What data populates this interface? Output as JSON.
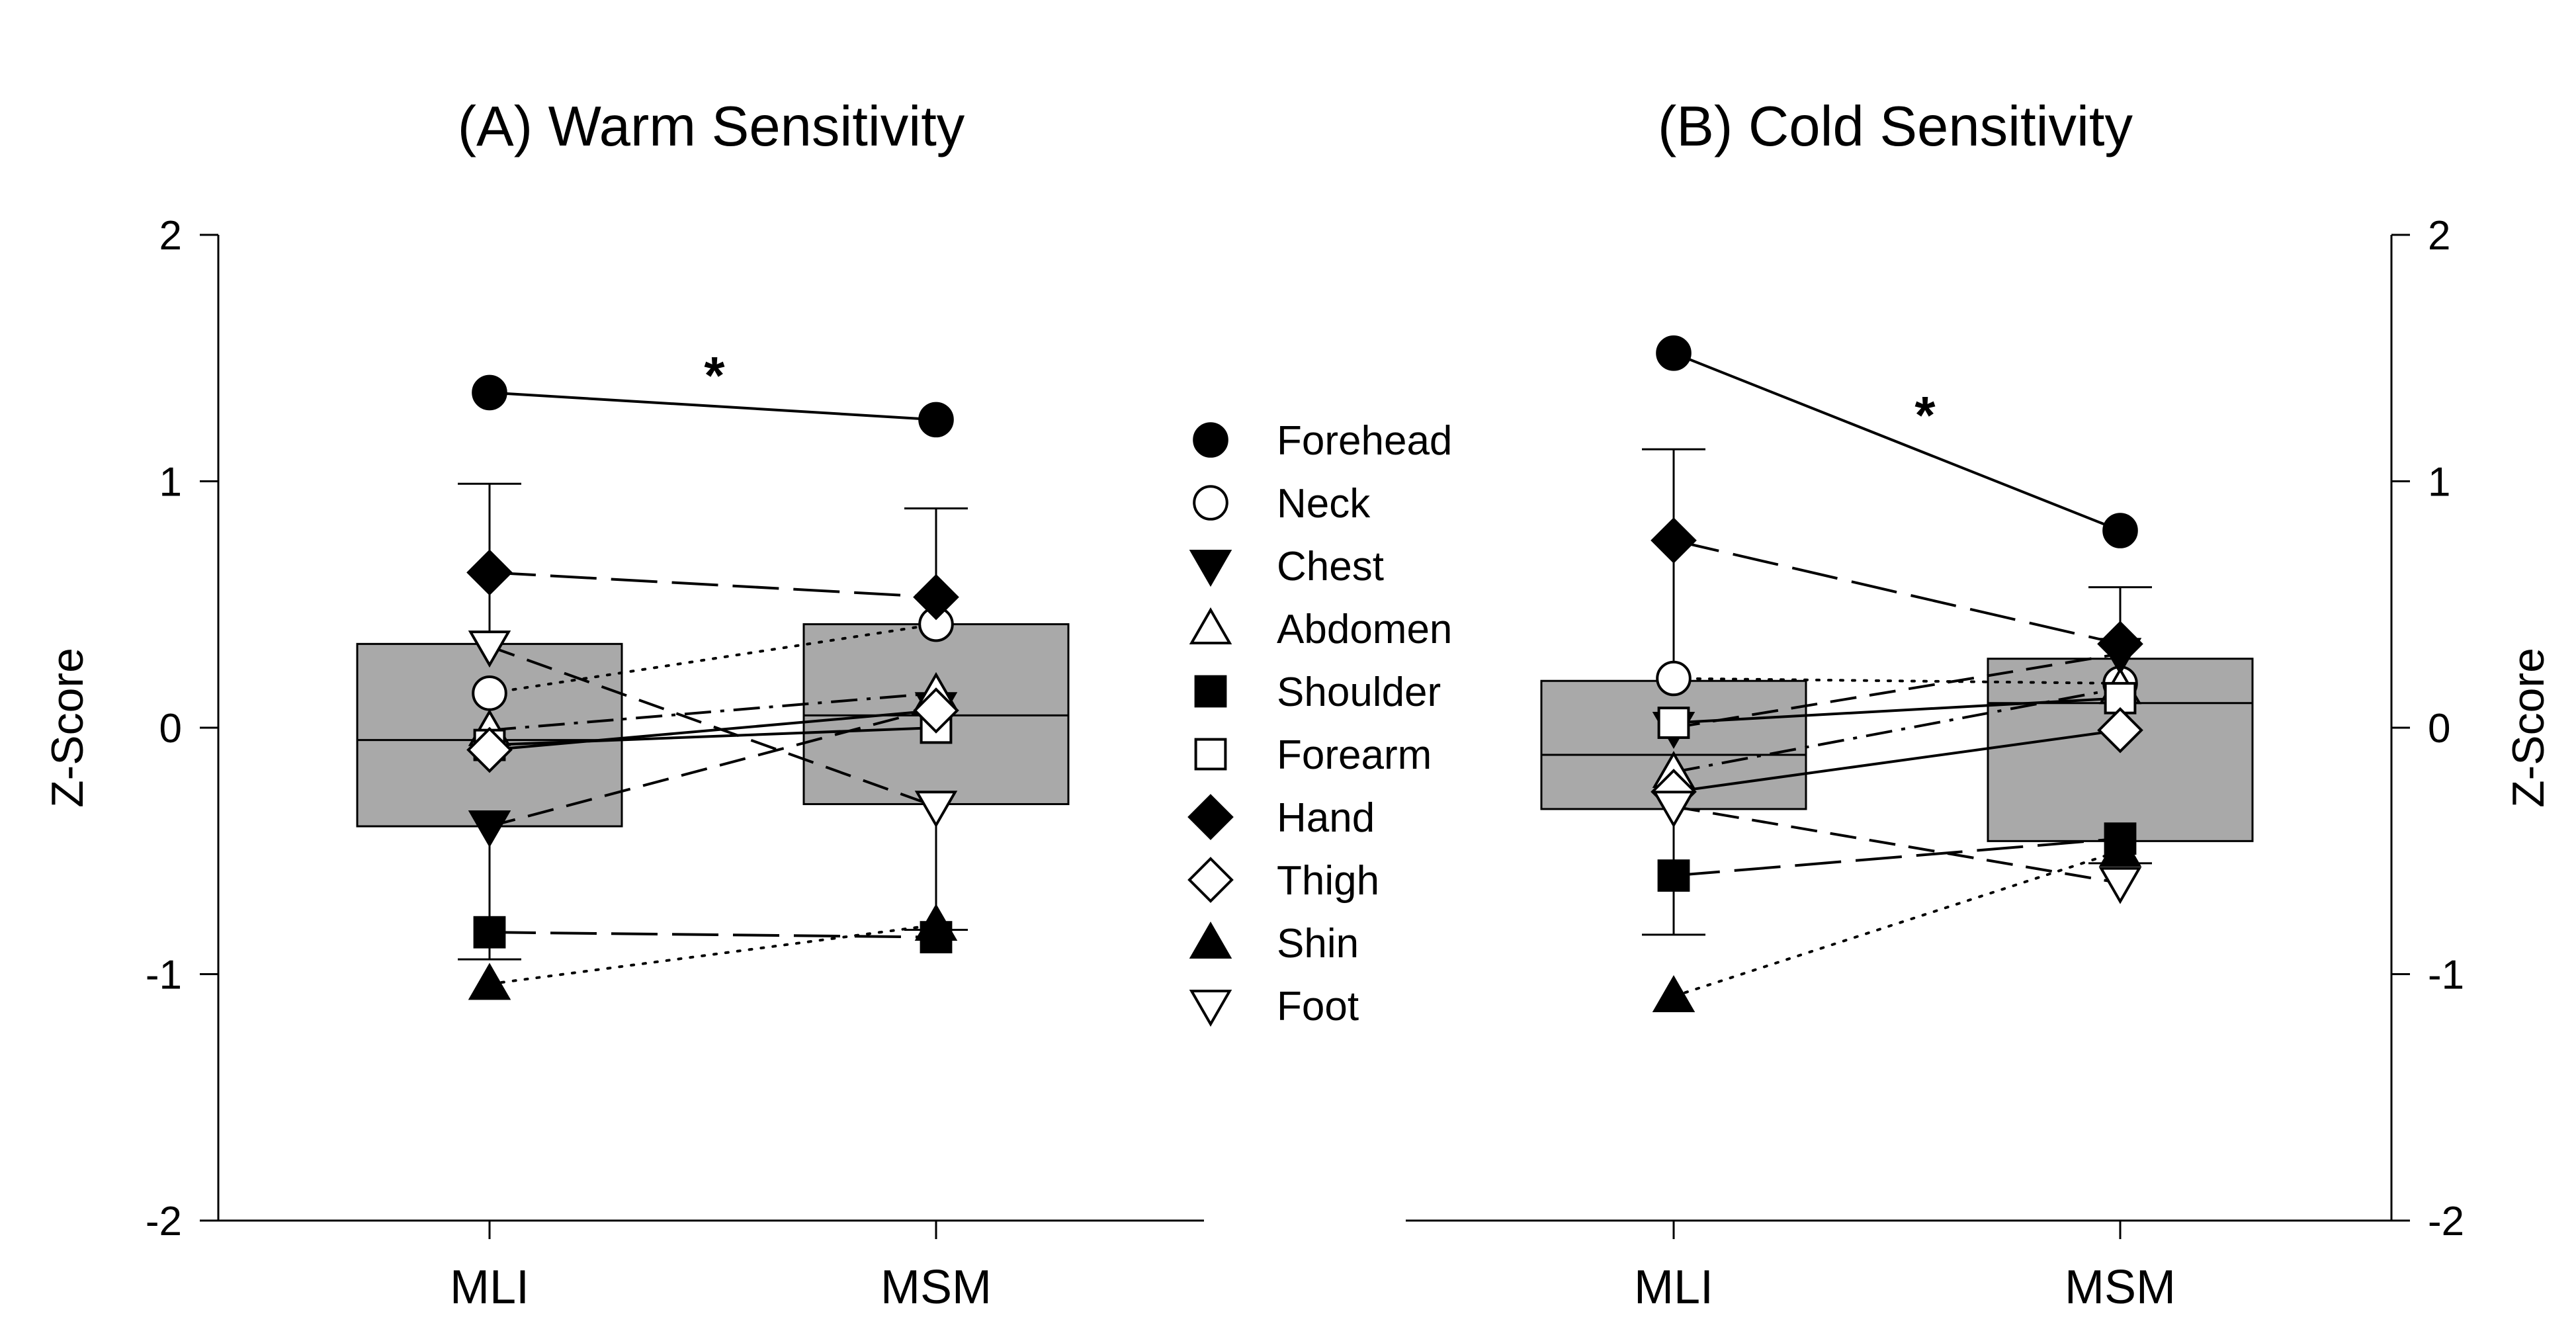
{
  "chart_data": [
    {
      "type": "box",
      "title": "(A) Warm Sensitivity",
      "xlabel": "",
      "ylabel": "Z-Score",
      "ylim": [
        -2,
        2
      ],
      "yticks": [
        -2,
        -1,
        0,
        1,
        2
      ],
      "categories": [
        "MLI",
        "MSM"
      ],
      "annotation": "*",
      "boxes": [
        {
          "category": "MLI",
          "q1": -0.4,
          "median": -0.05,
          "q3": 0.34,
          "whisker_low": -0.94,
          "whisker_high": 0.99
        },
        {
          "category": "MSM",
          "q1": -0.31,
          "median": 0.05,
          "q3": 0.42,
          "whisker_low": -0.82,
          "whisker_high": 0.89
        }
      ],
      "series": [
        {
          "name": "Forehead",
          "marker": "circle-filled",
          "line": "solid",
          "values": [
            1.36,
            1.25
          ]
        },
        {
          "name": "Neck",
          "marker": "circle-open",
          "line": "dotted",
          "values": [
            0.14,
            0.42
          ]
        },
        {
          "name": "Chest",
          "marker": "triangle-down-filled",
          "line": "dash",
          "values": [
            -0.4,
            0.08
          ]
        },
        {
          "name": "Abdomen",
          "marker": "triangle-up-open",
          "line": "dashdot",
          "values": [
            -0.01,
            0.14
          ]
        },
        {
          "name": "Shoulder",
          "marker": "square-filled",
          "line": "longdash",
          "values": [
            -0.83,
            -0.85
          ]
        },
        {
          "name": "Forearm",
          "marker": "square-open",
          "line": "solid",
          "values": [
            -0.07,
            0.0
          ]
        },
        {
          "name": "Hand",
          "marker": "diamond-filled",
          "line": "longdash",
          "values": [
            0.63,
            0.53
          ]
        },
        {
          "name": "Thigh",
          "marker": "diamond-open",
          "line": "solid",
          "values": [
            -0.09,
            0.07
          ]
        },
        {
          "name": "Shin",
          "marker": "triangle-up-filled",
          "line": "dotted",
          "values": [
            -1.04,
            -0.8
          ]
        },
        {
          "name": "Foot",
          "marker": "triangle-down-open",
          "line": "dash",
          "values": [
            0.33,
            -0.32
          ]
        }
      ]
    },
    {
      "type": "box",
      "title": "(B) Cold Sensitivity",
      "xlabel": "",
      "ylabel": "Z-Score",
      "ylim": [
        -2,
        2
      ],
      "yticks": [
        -2,
        -1,
        0,
        1,
        2
      ],
      "categories": [
        "MLI",
        "MSM"
      ],
      "annotation": "*",
      "boxes": [
        {
          "category": "MLI",
          "q1": -0.33,
          "median": -0.11,
          "q3": 0.19,
          "whisker_low": -0.84,
          "whisker_high": 1.13
        },
        {
          "category": "MSM",
          "q1": -0.46,
          "median": 0.1,
          "q3": 0.28,
          "whisker_low": -0.55,
          "whisker_high": 0.57
        }
      ],
      "series": [
        {
          "name": "Forehead",
          "marker": "circle-filled",
          "line": "solid",
          "values": [
            1.52,
            0.8
          ]
        },
        {
          "name": "Neck",
          "marker": "circle-open",
          "line": "dotted",
          "values": [
            0.2,
            0.18
          ]
        },
        {
          "name": "Chest",
          "marker": "triangle-down-filled",
          "line": "dash",
          "values": [
            0.0,
            0.3
          ]
        },
        {
          "name": "Abdomen",
          "marker": "triangle-up-open",
          "line": "dashdot",
          "values": [
            -0.18,
            0.16
          ]
        },
        {
          "name": "Shoulder",
          "marker": "square-filled",
          "line": "longdash",
          "values": [
            -0.6,
            -0.45
          ]
        },
        {
          "name": "Forearm",
          "marker": "square-open",
          "line": "solid",
          "values": [
            0.02,
            0.12
          ]
        },
        {
          "name": "Hand",
          "marker": "diamond-filled",
          "line": "longdash",
          "values": [
            0.76,
            0.34
          ]
        },
        {
          "name": "Thigh",
          "marker": "diamond-open",
          "line": "solid",
          "values": [
            -0.26,
            -0.01
          ]
        },
        {
          "name": "Shin",
          "marker": "triangle-up-filled",
          "line": "dotted",
          "values": [
            -1.09,
            -0.5
          ]
        },
        {
          "name": "Foot",
          "marker": "triangle-down-open",
          "line": "dash",
          "values": [
            -0.32,
            -0.63
          ]
        }
      ]
    }
  ],
  "legend": {
    "entries": [
      {
        "name": "Forehead",
        "marker": "circle-filled"
      },
      {
        "name": "Neck",
        "marker": "circle-open"
      },
      {
        "name": "Chest",
        "marker": "triangle-down-filled"
      },
      {
        "name": "Abdomen",
        "marker": "triangle-up-open"
      },
      {
        "name": "Shoulder",
        "marker": "square-filled"
      },
      {
        "name": "Forearm",
        "marker": "square-open"
      },
      {
        "name": "Hand",
        "marker": "diamond-filled"
      },
      {
        "name": "Thigh",
        "marker": "diamond-open"
      },
      {
        "name": "Shin",
        "marker": "triangle-up-filled"
      },
      {
        "name": "Foot",
        "marker": "triangle-down-open"
      }
    ]
  },
  "colors": {
    "box_fill": "#a9a9a9",
    "ink": "#000000",
    "background": "#ffffff"
  }
}
